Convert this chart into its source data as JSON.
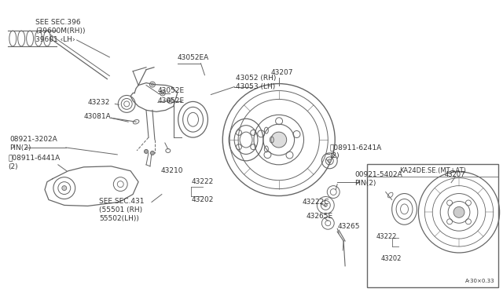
{
  "bg_color": "#ffffff",
  "line_color": "#666666",
  "text_color": "#333333",
  "labels": {
    "see_sec396": "SEE SEC.396\n(39600M(RH))\n39601 ‹LH›",
    "p43052ea": "43052EA",
    "p43052rh": "43052 (RH)\n43053 (LH)",
    "p43232": "43232",
    "p43081a": "43081A",
    "p43052e_1": "43052E",
    "p43052e_2": "43052E",
    "p08921": "08921-3202A\nPIN(2)",
    "p08911_6441a": "ⓝ08911-6441A\n(2)",
    "p43210": "43210",
    "p43222": "43222",
    "p43202": "43202",
    "p43207": "43207",
    "p08911_6241a": "ⓝ08911-6241A\n(2)",
    "p00921": "00921-5402A\nPIN(2)",
    "p43222c": "43222C",
    "p43265e": "43265E",
    "p43265": "43265",
    "see_sec431": "SEE SEC.431\n(55501 (RH)\n55502(LH))",
    "inset_label": "KA24DE.SE.(MT+AT)",
    "inset_43207": "43207",
    "inset_43222": "43222",
    "inset_43202": "43202",
    "scale_note": "A·30×0.33"
  },
  "font_size": 6.5
}
